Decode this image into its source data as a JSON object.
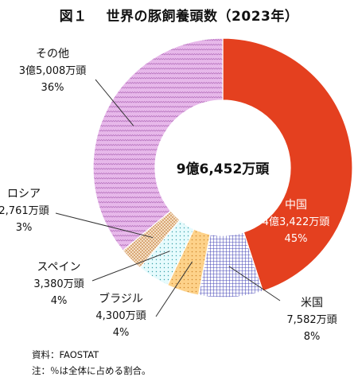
{
  "title": "図１　 世界の豚飼養頭数（2023年）",
  "center_label": "9億6,452万頭",
  "source": "資料：FAOSTAT",
  "note": "注：％は全体に占める割合。",
  "colors": {
    "china": "#e4401f",
    "usa": "#8a8ad6",
    "brazil": "#fdd28a",
    "spain": "#e6fbfd",
    "russia": "#f4dfc4",
    "other": "#e7b8ea"
  },
  "chart_data": {
    "type": "pie",
    "total": "9億6,452万頭",
    "slices": [
      {
        "name": "中国",
        "value_label": "4億3,422万頭",
        "percent": 45,
        "percent_label": "45%",
        "color": "#e4401f",
        "pattern": "solid"
      },
      {
        "name": "米国",
        "value_label": "7,582万頭",
        "percent": 8,
        "percent_label": "8%",
        "color": "#8a8ad6",
        "pattern": "grid"
      },
      {
        "name": "ブラジル",
        "value_label": "4,300万頭",
        "percent": 4,
        "percent_label": "4%",
        "color": "#fdd28a",
        "pattern": "dots"
      },
      {
        "name": "スペイン",
        "value_label": "3,380万頭",
        "percent": 4,
        "percent_label": "4%",
        "color": "#e6fbfd",
        "pattern": "dots"
      },
      {
        "name": "ロシア",
        "value_label": "2,761万頭",
        "percent": 3,
        "percent_label": "3%",
        "color": "#f4dfc4",
        "pattern": "fine-check"
      },
      {
        "name": "その他",
        "value_label": "3億5,008万頭",
        "percent": 36,
        "percent_label": "36%",
        "color": "#e7b8ea",
        "pattern": "zigzag"
      }
    ]
  }
}
